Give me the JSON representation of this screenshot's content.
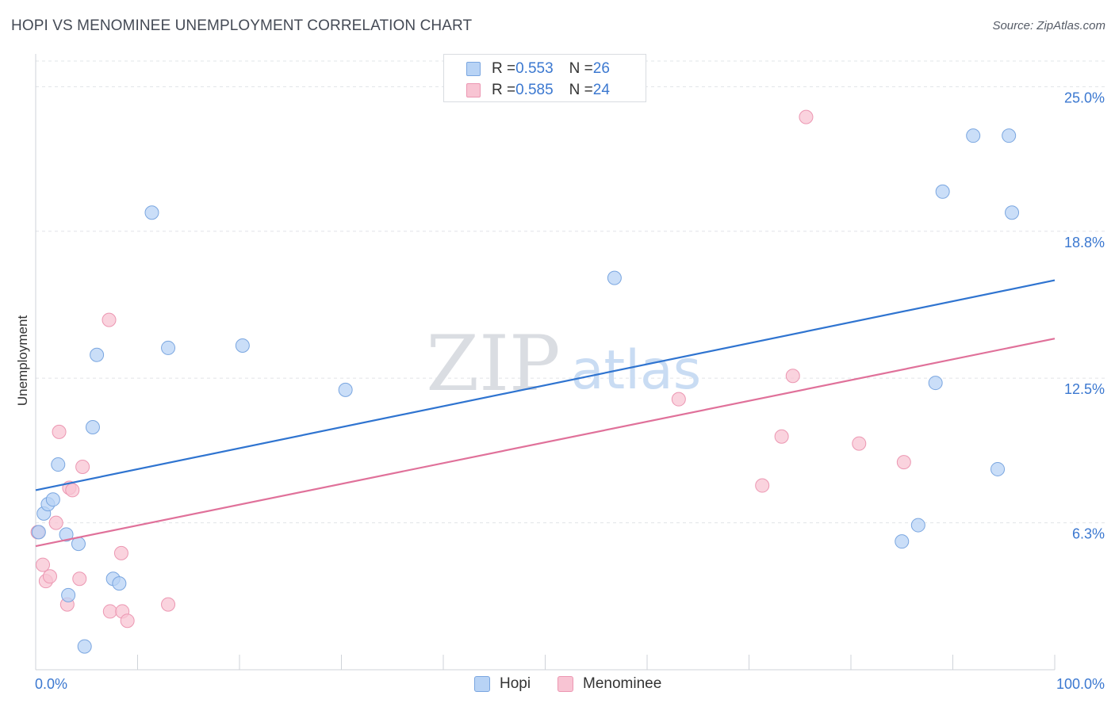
{
  "title": "HOPI VS MENOMINEE UNEMPLOYMENT CORRELATION CHART",
  "source": "Source: ZipAtlas.com",
  "watermark": {
    "zip": "ZIP",
    "atlas": "atlas"
  },
  "legend_top": {
    "rows": [
      {
        "r_label": "R = ",
        "r_value": "0.553",
        "n_label": "N = ",
        "n_value": "26"
      },
      {
        "r_label": "R = ",
        "r_value": "0.585",
        "n_label": "N = ",
        "n_value": "24"
      }
    ]
  },
  "legend_bottom": {
    "hopi": "Hopi",
    "menominee": "Menominee"
  },
  "colors": {
    "hopi_fill": "#b8d3f5",
    "hopi_stroke": "#7aa6e0",
    "hopi_line": "#2f74d0",
    "men_fill": "#f8c4d3",
    "men_stroke": "#ec97b2",
    "men_line": "#e0719a",
    "tick_text": "#3b78d0",
    "grid": "#e1e4e8"
  },
  "chart_data": {
    "type": "scatter",
    "title": "HOPI VS MENOMINEE UNEMPLOYMENT CORRELATION CHART",
    "xlabel": "",
    "ylabel": "Unemployment",
    "xlim": [
      0,
      100
    ],
    "ylim": [
      0,
      26.1
    ],
    "x_tick_labels": [
      "0.0%",
      "100.0%"
    ],
    "y_ticks": [
      6.3,
      12.5,
      18.8,
      25.0
    ],
    "y_tick_labels": [
      "6.3%",
      "12.5%",
      "18.8%",
      "25.0%"
    ],
    "series": [
      {
        "name": "Hopi",
        "points": [
          [
            0.3,
            5.9
          ],
          [
            0.8,
            6.7
          ],
          [
            1.2,
            7.1
          ],
          [
            1.7,
            7.3
          ],
          [
            2.2,
            8.8
          ],
          [
            3.0,
            5.8
          ],
          [
            3.2,
            3.2
          ],
          [
            4.2,
            5.4
          ],
          [
            4.8,
            1.0
          ],
          [
            5.6,
            10.4
          ],
          [
            6.0,
            13.5
          ],
          [
            7.6,
            3.9
          ],
          [
            8.2,
            3.7
          ],
          [
            11.4,
            19.6
          ],
          [
            13.0,
            13.8
          ],
          [
            20.3,
            13.9
          ],
          [
            30.4,
            12.0
          ],
          [
            56.8,
            16.8
          ],
          [
            85.0,
            5.5
          ],
          [
            86.6,
            6.2
          ],
          [
            88.3,
            12.3
          ],
          [
            89.0,
            20.5
          ],
          [
            92.0,
            22.9
          ],
          [
            94.4,
            8.6
          ],
          [
            95.5,
            22.9
          ],
          [
            95.8,
            19.6
          ]
        ],
        "trend": {
          "x": [
            0,
            100
          ],
          "y": [
            7.7,
            16.7
          ]
        }
      },
      {
        "name": "Menominee",
        "points": [
          [
            0.2,
            5.9
          ],
          [
            0.7,
            4.5
          ],
          [
            1.0,
            3.8
          ],
          [
            1.4,
            4.0
          ],
          [
            2.0,
            6.3
          ],
          [
            2.3,
            10.2
          ],
          [
            3.1,
            2.8
          ],
          [
            3.3,
            7.8
          ],
          [
            3.6,
            7.7
          ],
          [
            4.3,
            3.9
          ],
          [
            4.6,
            8.7
          ],
          [
            7.2,
            15.0
          ],
          [
            7.3,
            2.5
          ],
          [
            8.4,
            5.0
          ],
          [
            8.5,
            2.5
          ],
          [
            9.0,
            2.1
          ],
          [
            13.0,
            2.8
          ],
          [
            63.1,
            11.6
          ],
          [
            71.3,
            7.9
          ],
          [
            73.2,
            10.0
          ],
          [
            74.3,
            12.6
          ],
          [
            75.6,
            23.7
          ],
          [
            80.8,
            9.7
          ],
          [
            85.2,
            8.9
          ]
        ],
        "trend": {
          "x": [
            0,
            100
          ],
          "y": [
            5.3,
            14.2
          ]
        }
      }
    ]
  }
}
